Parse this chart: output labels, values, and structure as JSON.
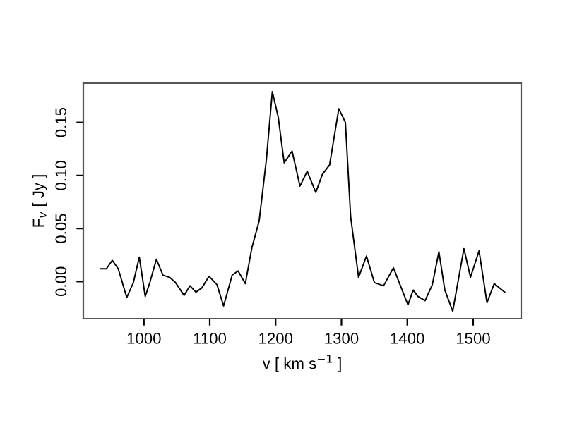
{
  "chart_data": {
    "type": "line",
    "xlabel": "v [ km s$^{−1}$ ]",
    "ylabel": "F$_{v}$ [ Jy ]",
    "color": "#000000",
    "x": [
      934,
      943,
      952,
      961,
      974,
      984,
      993,
      1002,
      1009,
      1019,
      1029,
      1039,
      1048,
      1061,
      1070,
      1079,
      1088,
      1099,
      1111,
      1121,
      1134,
      1143,
      1154,
      1164,
      1175,
      1186,
      1195,
      1204,
      1213,
      1225,
      1237,
      1248,
      1261,
      1271,
      1282,
      1296,
      1306,
      1314,
      1326,
      1338,
      1350,
      1364,
      1379,
      1389,
      1401,
      1409,
      1416,
      1427,
      1438,
      1448,
      1457,
      1469,
      1486,
      1496,
      1509,
      1521,
      1532,
      1548
    ],
    "values": [
      0.012,
      0.012,
      0.02,
      0.012,
      -0.015,
      -0.001,
      0.023,
      -0.014,
      -0.001,
      0.021,
      0.006,
      0.004,
      -0.001,
      -0.013,
      -0.004,
      -0.01,
      -0.006,
      0.005,
      -0.003,
      -0.023,
      0.006,
      0.01,
      -0.002,
      0.032,
      0.057,
      0.115,
      0.179,
      0.155,
      0.112,
      0.123,
      0.09,
      0.104,
      0.084,
      0.101,
      0.11,
      0.163,
      0.15,
      0.061,
      0.004,
      0.024,
      -0.001,
      -0.004,
      0.013,
      -0.003,
      -0.022,
      -0.008,
      -0.014,
      -0.018,
      -0.003,
      0.028,
      -0.008,
      -0.028,
      0.031,
      0.004,
      0.029,
      -0.02,
      -0.002,
      -0.01
    ],
    "xlim": [
      908,
      1573
    ],
    "ylim": [
      -0.035,
      0.187
    ],
    "xticks": [
      1000,
      1100,
      1200,
      1300,
      1400,
      1500
    ],
    "yticks": [
      {
        "value": 0,
        "label": "0.00"
      },
      {
        "value": 0.05,
        "label": "0.05"
      },
      {
        "value": 0.1,
        "label": "0.10"
      },
      {
        "value": 0.15,
        "label": "0.15"
      }
    ],
    "grid": false
  }
}
